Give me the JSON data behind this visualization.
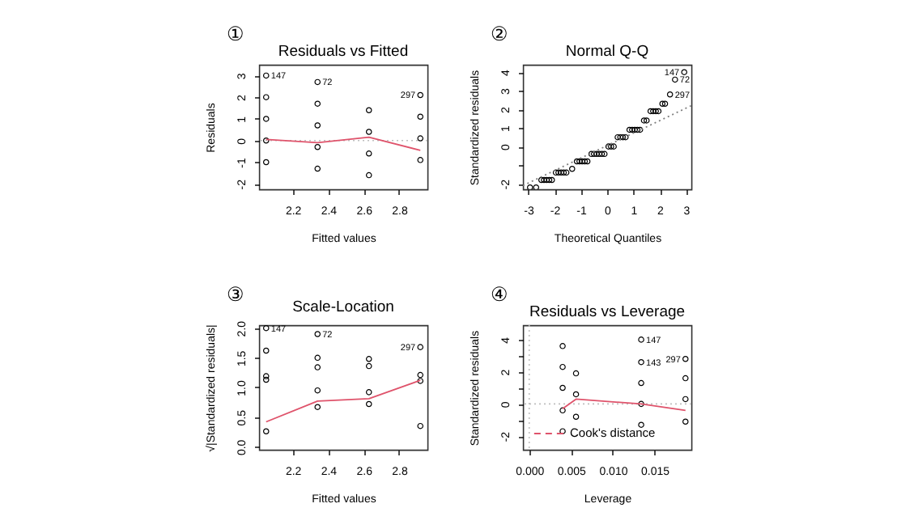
{
  "chart_data": [
    {
      "type": "scatter",
      "title": "Residuals vs Fitted",
      "xlabel": "Fitted values",
      "ylabel": "Residuals",
      "xlim": [
        2.01,
        2.96
      ],
      "xticks": [
        2.2,
        2.4,
        2.6,
        2.8
      ],
      "ylim": [
        -2.25,
        3.5
      ],
      "yticks": [
        -2,
        -1,
        0,
        1,
        2,
        3
      ],
      "marker": "circle",
      "series": [
        {
          "color": "#000000",
          "x": [
            2.05,
            2.05,
            2.05,
            2.05,
            2.05,
            2.34,
            2.34,
            2.34,
            2.34,
            2.34,
            2.63,
            2.63,
            2.63,
            2.63,
            2.92,
            2.92,
            2.92,
            2.92
          ],
          "values": [
            3.0,
            2.0,
            1.0,
            0.0,
            -1.0,
            2.7,
            1.7,
            0.7,
            -0.3,
            -1.3,
            1.4,
            0.4,
            -0.6,
            -1.6,
            2.1,
            1.1,
            0.1,
            -0.9
          ]
        },
        {
          "type": "line",
          "marker": "none",
          "color": "#df536b",
          "x": [
            2.05,
            2.34,
            2.63,
            2.92
          ],
          "values": [
            0.05,
            -0.1,
            0.15,
            -0.45
          ]
        }
      ],
      "ref_lines": [
        {
          "axis": "y",
          "value": 0,
          "color": "#bebebe",
          "line_style": "dotted"
        }
      ],
      "annotations": [
        "①",
        {
          "text": "147",
          "x": 2.05,
          "y": 3.0
        },
        {
          "text": "72",
          "x": 2.34,
          "y": 2.7
        },
        {
          "text": "297",
          "x": 2.92,
          "y": 2.1
        }
      ]
    },
    {
      "type": "scatter",
      "title": "Normal Q-Q",
      "xlabel": "Theoretical Quantiles",
      "ylabel": "Standardized residuals",
      "xlim": [
        -3.2,
        3.2
      ],
      "xticks": [
        -3,
        -2,
        -1,
        0,
        1,
        2,
        3
      ],
      "ylim": [
        -2.3,
        4.4
      ],
      "yticks": [
        -2,
        {
          "value": -1,
          "label": null
        },
        0,
        1,
        2,
        3,
        4
      ],
      "marker": "circle",
      "series": [
        {
          "color": "#000000",
          "x": [
            -2.93,
            -2.7,
            -2.5,
            -2.4,
            -2.3,
            -2.2,
            -2.1,
            -1.95,
            -1.85,
            -1.75,
            -1.65,
            -1.55,
            -1.33,
            -1.15,
            -1.05,
            -0.95,
            -0.85,
            -0.75,
            -0.6,
            -0.5,
            -0.4,
            -0.3,
            -0.2,
            -0.1,
            0.05,
            0.15,
            0.25,
            0.4,
            0.5,
            0.6,
            0.7,
            0.85,
            0.95,
            1.05,
            1.15,
            1.25,
            1.4,
            1.5,
            1.65,
            1.75,
            1.85,
            1.95,
            2.1,
            2.2,
            2.39,
            2.58,
            2.93
          ],
          "values": [
            -2.2,
            -2.2,
            -1.8,
            -1.8,
            -1.8,
            -1.8,
            -1.8,
            -1.4,
            -1.4,
            -1.4,
            -1.4,
            -1.4,
            -1.2,
            -0.8,
            -0.8,
            -0.8,
            -0.8,
            -0.8,
            -0.4,
            -0.4,
            -0.4,
            -0.4,
            -0.4,
            -0.4,
            0.0,
            0.0,
            0.0,
            0.5,
            0.5,
            0.5,
            0.5,
            0.9,
            0.9,
            0.9,
            0.9,
            0.9,
            1.4,
            1.4,
            1.9,
            1.9,
            1.9,
            1.9,
            2.3,
            2.3,
            2.8,
            3.6,
            4.0
          ]
        },
        {
          "type": "line",
          "marker": "none",
          "color": "#7f7f7f",
          "line_style": "dotted",
          "x": [
            -3.2,
            3.2
          ],
          "values": [
            -2.1,
            2.2
          ]
        }
      ],
      "annotations": [
        "②",
        {
          "text": "147",
          "x": 2.93,
          "y": 4.0
        },
        {
          "text": "72",
          "x": 2.58,
          "y": 3.6
        },
        {
          "text": "297",
          "x": 2.39,
          "y": 2.8
        }
      ]
    },
    {
      "type": "scatter",
      "title": "Scale-Location",
      "xlabel": "Fitted values",
      "ylabel": "√|Standardized residuals|",
      "xlim": [
        2.01,
        2.96
      ],
      "xticks": [
        2.2,
        2.4,
        2.6,
        2.8
      ],
      "ylim": [
        -0.05,
        2.05
      ],
      "yticks": [
        {
          "value": 0,
          "label": "0.0"
        },
        0.5,
        {
          "value": 1,
          "label": "1.0"
        },
        1.5,
        {
          "value": 2,
          "label": "2.0"
        }
      ],
      "marker": "circle",
      "series": [
        {
          "color": "#000000",
          "x": [
            2.05,
            2.05,
            2.05,
            2.05,
            2.05,
            2.34,
            2.34,
            2.34,
            2.34,
            2.34,
            2.63,
            2.63,
            2.63,
            2.63,
            2.92,
            2.92,
            2.92,
            2.92
          ],
          "values": [
            2.0,
            1.62,
            1.19,
            1.13,
            0.26,
            1.9,
            1.5,
            1.34,
            0.95,
            0.67,
            1.48,
            1.36,
            0.92,
            0.72,
            1.68,
            1.21,
            1.11,
            0.35
          ]
        },
        {
          "type": "line",
          "marker": "none",
          "color": "#df536b",
          "x": [
            2.05,
            2.34,
            2.63,
            2.92
          ],
          "values": [
            0.42,
            0.77,
            0.81,
            1.12
          ]
        }
      ],
      "annotations": [
        "③",
        {
          "text": "147",
          "x": 2.05,
          "y": 2.0
        },
        {
          "text": "72",
          "x": 2.34,
          "y": 1.9
        },
        {
          "text": "297",
          "x": 2.92,
          "y": 1.68
        }
      ]
    },
    {
      "type": "scatter",
      "title": "Residuals vs Leverage",
      "xlabel": "Leverage",
      "ylabel": "Standardized residuals",
      "xlim": [
        -0.00075,
        0.0194
      ],
      "xticks": [
        {
          "value": 0,
          "label": "0.000"
        },
        0.005,
        {
          "value": 0.01,
          "label": "0.010"
        },
        0.015
      ],
      "ylim": [
        -2.85,
        4.9
      ],
      "yticks": [
        -2,
        {
          "value": -1,
          "label": null
        },
        0,
        {
          "value": 1,
          "label": null
        },
        2,
        {
          "value": 3,
          "label": null
        },
        4
      ],
      "marker": "circle",
      "legend": "bottom left",
      "series": [
        {
          "color": "#000000",
          "x": [
            0.004,
            0.004,
            0.004,
            0.004,
            0.004,
            0.0056,
            0.0056,
            0.0056,
            0.0134,
            0.0134,
            0.0134,
            0.0134,
            0.0134,
            0.0187,
            0.0187,
            0.0187,
            0.0187
          ],
          "values": [
            3.6,
            2.3,
            1.0,
            -0.4,
            -1.7,
            1.9,
            0.6,
            -0.8,
            4.0,
            2.6,
            1.3,
            0.0,
            -1.3,
            2.8,
            1.6,
            0.3,
            -1.1
          ]
        },
        {
          "type": "line",
          "marker": "none",
          "color": "#df536b",
          "x": [
            0.004,
            0.0056,
            0.0134,
            0.0187
          ],
          "values": [
            -0.3,
            0.3,
            0.0,
            -0.4
          ]
        },
        {
          "type": "line",
          "marker": "none",
          "name": "Cook's distance",
          "color": "#df536b",
          "line_style": "dashed"
        }
      ],
      "ref_lines": [
        {
          "axis": "x",
          "value": 0,
          "color": "#bebebe",
          "line_style": "dotted"
        },
        {
          "axis": "y",
          "value": 0,
          "color": "#bebebe",
          "line_style": "dotted"
        }
      ],
      "annotations": [
        "④",
        {
          "text": "147",
          "x": 0.0134,
          "y": 4.0
        },
        {
          "text": "143",
          "x": 0.0134,
          "y": 2.6
        },
        {
          "text": "297",
          "x": 0.0187,
          "y": 2.8
        }
      ]
    }
  ]
}
